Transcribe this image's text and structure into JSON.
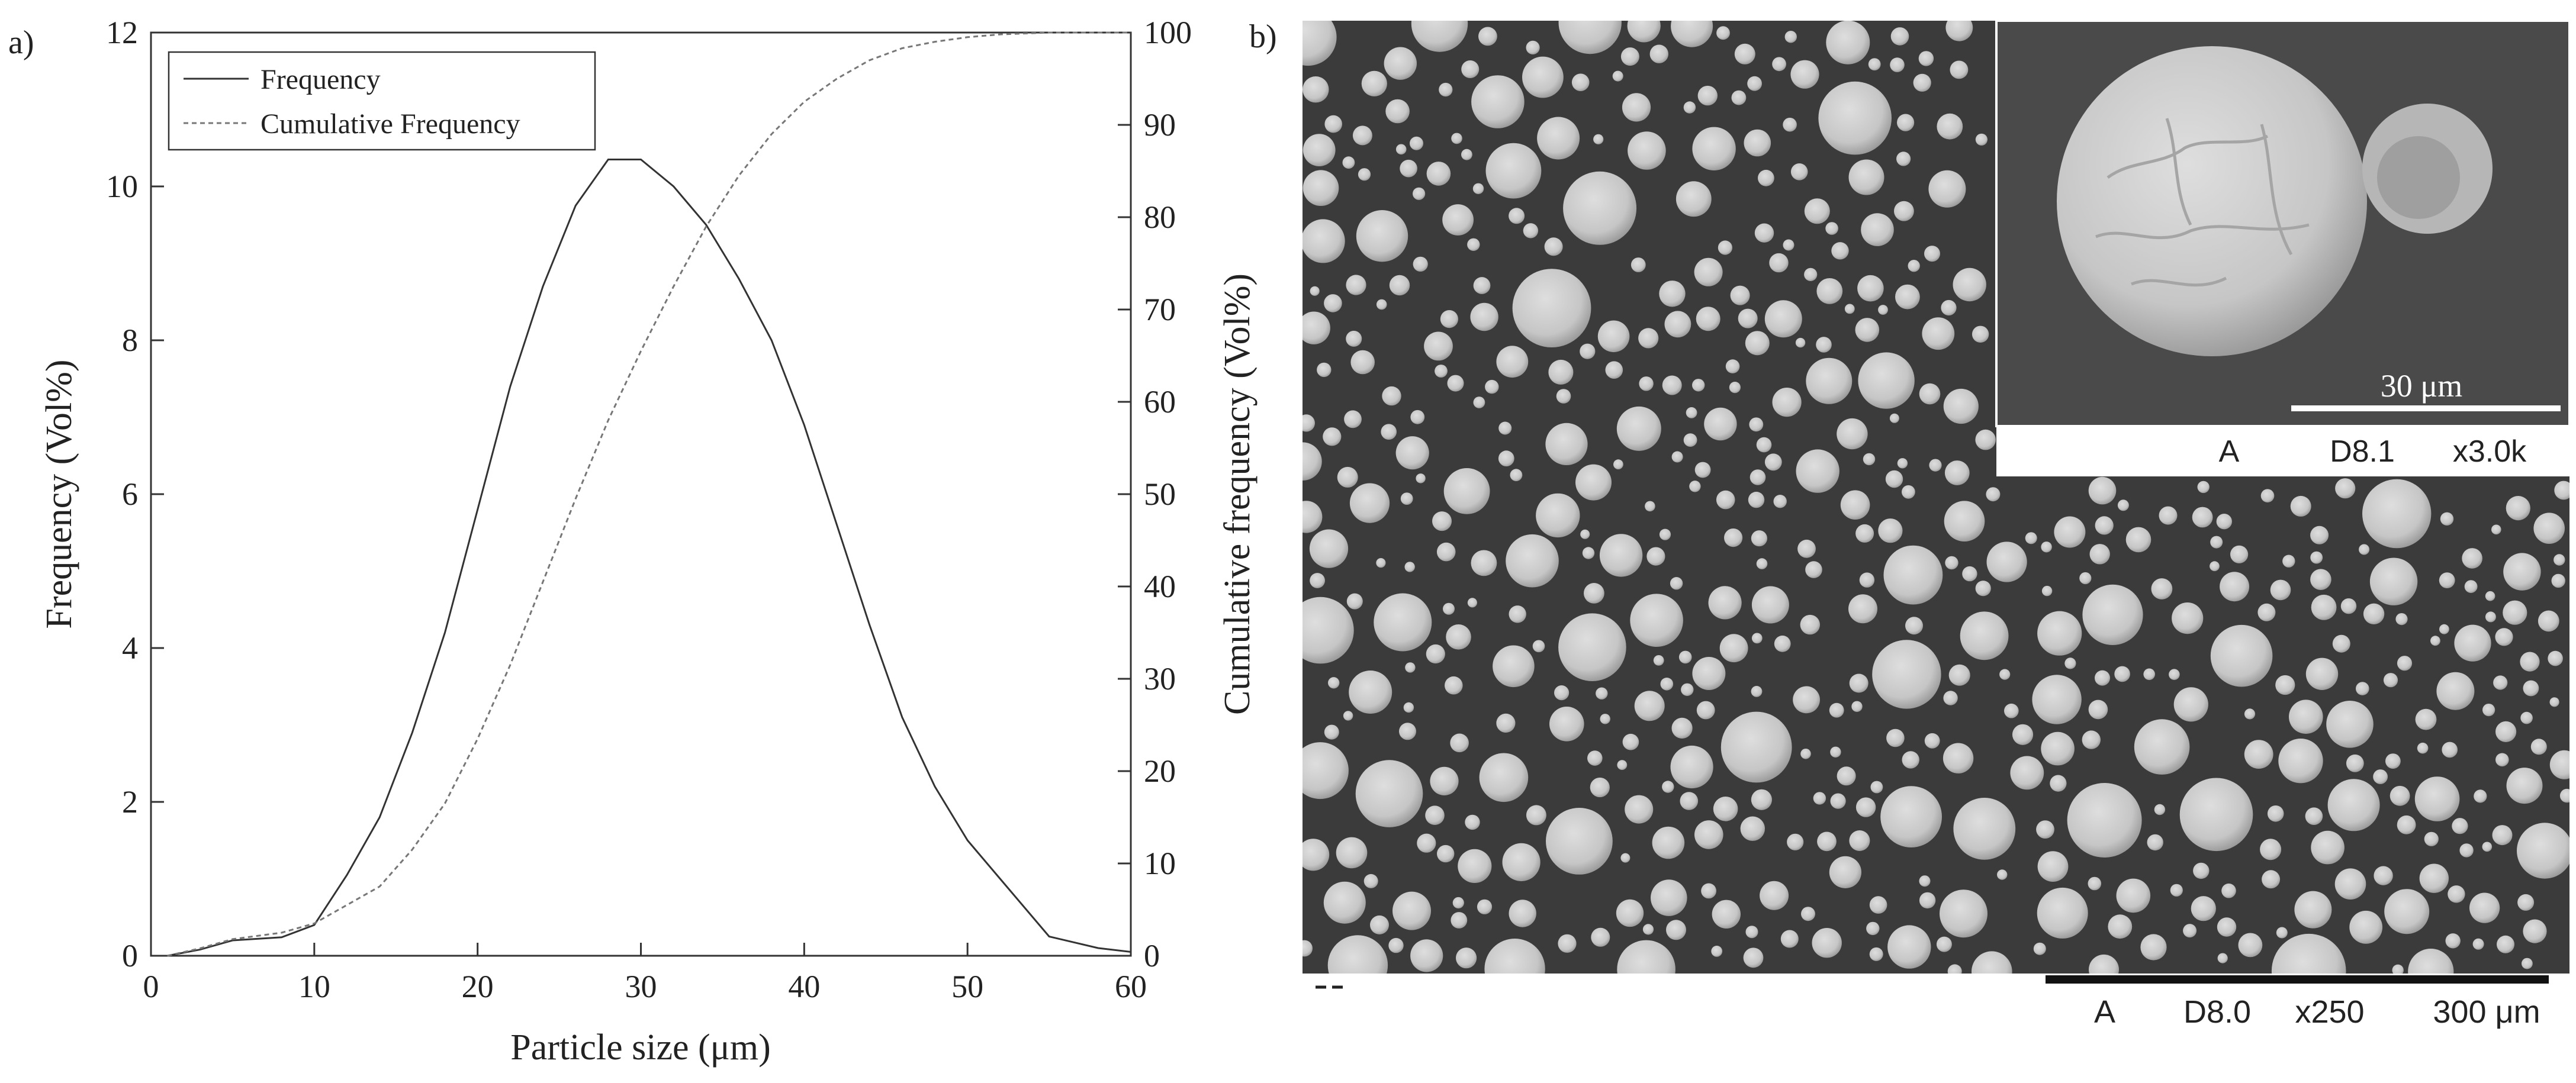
{
  "panel_labels": {
    "a": "a)",
    "b": "b)"
  },
  "chart_data": {
    "type": "line",
    "title": "",
    "xlabel": "Particle size (μm)",
    "ylabel": "Frequency (Vol%)",
    "y2label": "Cumulative frequency (Vol%)",
    "xlim": [
      0,
      60
    ],
    "ylim": [
      0,
      12
    ],
    "y2lim": [
      0,
      100
    ],
    "xticks": [
      "0",
      "10",
      "20",
      "30",
      "40",
      "50",
      "60"
    ],
    "yticks": [
      "0",
      "2",
      "4",
      "6",
      "8",
      "10",
      "12"
    ],
    "y2ticks": [
      "0",
      "10",
      "20",
      "30",
      "40",
      "50",
      "60",
      "70",
      "80",
      "90",
      "100"
    ],
    "grid": false,
    "legend_position": "top-left",
    "series": [
      {
        "name": "Frequency",
        "axis": "left",
        "style": "solid",
        "x": [
          1,
          3,
          5,
          8,
          10,
          12,
          14,
          16,
          18,
          20,
          22,
          24,
          26,
          28,
          30,
          32,
          34,
          36,
          38,
          40,
          42,
          44,
          46,
          48,
          50,
          52,
          55,
          58,
          60
        ],
        "y": [
          0,
          0.08,
          0.2,
          0.24,
          0.4,
          1.05,
          1.8,
          2.9,
          4.2,
          5.8,
          7.4,
          8.7,
          9.75,
          10.35,
          10.35,
          10.0,
          9.5,
          8.8,
          8.0,
          6.9,
          5.6,
          4.3,
          3.1,
          2.2,
          1.5,
          1.0,
          0.25,
          0.1,
          0.05
        ]
      },
      {
        "name": "Cumulative Frequency",
        "axis": "right",
        "style": "dotted",
        "x": [
          1,
          3,
          5,
          8,
          10,
          12,
          14,
          16,
          18,
          20,
          22,
          24,
          26,
          28,
          30,
          32,
          34,
          36,
          38,
          40,
          42,
          44,
          46,
          48,
          50,
          52,
          55,
          58,
          60
        ],
        "y": [
          0,
          0.8,
          1.8,
          2.5,
          3.5,
          5.5,
          7.5,
          11.5,
          16.5,
          23.5,
          31.5,
          40.5,
          49.5,
          58.0,
          65.5,
          72.5,
          79.0,
          84.5,
          89.0,
          92.5,
          95.0,
          97.0,
          98.3,
          99.0,
          99.5,
          99.8,
          100,
          100,
          100
        ]
      }
    ]
  },
  "micrograph": {
    "main_caption": {
      "detector": "A",
      "distance": "D8.0",
      "magnification": "x250",
      "scale": "300 μm"
    },
    "inset_caption": {
      "detector": "A",
      "distance": "D8.1",
      "magnification": "x3.0k"
    },
    "inset_scale": "30 μm",
    "colors": {
      "background": "#3b3b3b",
      "particle": "#c9c9c9",
      "particle_edge": "#9a9a9a"
    }
  }
}
